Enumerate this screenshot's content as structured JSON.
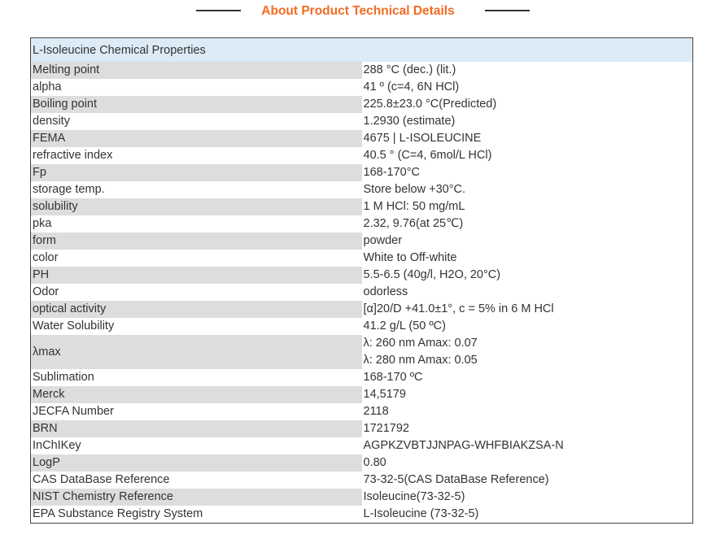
{
  "heading": "About Product Technical Details",
  "table": {
    "title": "L-Isoleucine Chemical Properties",
    "rows": [
      {
        "name": "Melting point",
        "value": "288 °C (dec.) (lit.)"
      },
      {
        "name": "alpha",
        "value": "41 º (c=4, 6N HCl)"
      },
      {
        "name": "Boiling point",
        "value": "225.8±23.0 °C(Predicted)"
      },
      {
        "name": "density",
        "value": "1.2930 (estimate)"
      },
      {
        "name": "FEMA",
        "value": "4675 | L-ISOLEUCINE"
      },
      {
        "name": "refractive index",
        "value": "40.5 ° (C=4, 6mol/L HCl)"
      },
      {
        "name": "Fp",
        "value": "168-170°C"
      },
      {
        "name": "storage temp.",
        "value": "Store below +30°C."
      },
      {
        "name": "solubility",
        "value": "1 M HCl: 50 mg/mL"
      },
      {
        "name": "pka",
        "value": "2.32, 9.76(at 25℃)"
      },
      {
        "name": "form",
        "value": "powder"
      },
      {
        "name": "color",
        "value": "White to Off-white"
      },
      {
        "name": "PH",
        "value": "5.5-6.5 (40g/l, H2O, 20°C)"
      },
      {
        "name": "Odor",
        "value": "odorless"
      },
      {
        "name": "optical activity",
        "value": "[α]20/D +41.0±1°, c = 5% in 6 M HCl"
      },
      {
        "name": "Water Solubility",
        "value": "41.2 g/L (50 ºC)"
      },
      {
        "name": "λmax",
        "value_lines": [
          "λ: 260 nm Amax: 0.07",
          "λ: 280 nm Amax: 0.05"
        ]
      },
      {
        "name": "Sublimation",
        "value": "168-170 ºC"
      },
      {
        "name": "Merck",
        "value": "14,5179"
      },
      {
        "name": "JECFA Number",
        "value": "2118"
      },
      {
        "name": "BRN",
        "value": "1721792"
      },
      {
        "name": "InChIKey",
        "value": "AGPKZVBTJJNPAG-WHFBIAKZSA-N"
      },
      {
        "name": "LogP",
        "value": "0.80"
      },
      {
        "name": "CAS DataBase Reference",
        "value": "73-32-5(CAS DataBase Reference)"
      },
      {
        "name": "NIST Chemistry Reference",
        "value": "Isoleucine(73-32-5)"
      },
      {
        "name": "EPA Substance Registry System",
        "value": "L-Isoleucine (73-32-5)"
      }
    ]
  },
  "colors": {
    "heading": "#f26b22",
    "header_row_bg": "#dcebf5",
    "alt_row_bg": "#dddddd",
    "border": "#444444",
    "text": "#333333"
  }
}
